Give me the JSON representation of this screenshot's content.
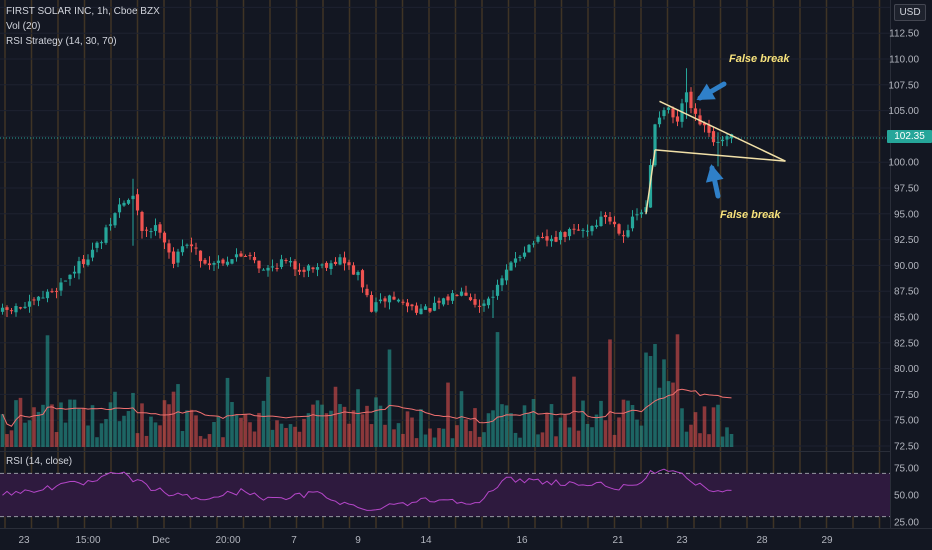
{
  "legend": {
    "symbol_line": "FIRST SOLAR INC, 1h, Cboe BZX",
    "volume_line": "Vol (20)",
    "strategy_line": "RSI Strategy (14, 30, 70)",
    "rsi_line": "RSI (14, close)"
  },
  "currency_badge": "USD",
  "last_price_label": "102.35",
  "annotations": [
    {
      "text": "False break"
    },
    {
      "text": "False break"
    }
  ],
  "colors": {
    "background": "#131722",
    "up": "#26a69a",
    "down": "#ef5350",
    "rsi_line": "#b446c8",
    "rsi_band": "#2e1a3e",
    "annotation_text": "#f7e27c",
    "arrow": "#2f80c9",
    "pattern_lines": "#f1e0a8",
    "volume_ma": "#f07070",
    "strategy_marker": "#e0a030"
  },
  "chart_data": {
    "type": "candlestick",
    "price_axis": {
      "ticks": [
        "112.50",
        "110.00",
        "107.50",
        "105.00",
        "102.50",
        "100.00",
        "97.50",
        "95.00",
        "92.50",
        "90.00",
        "87.50",
        "85.00",
        "82.50",
        "80.00",
        "77.50",
        "75.00",
        "72.50"
      ],
      "range": [
        72.5,
        115
      ]
    },
    "time_axis": {
      "ticks": [
        "23",
        "15:00",
        "Dec",
        "20:00",
        "7",
        "9",
        "14",
        "16",
        "21",
        "23",
        "28",
        "29"
      ]
    },
    "price_path": [
      {
        "bar": 0,
        "value": 85.5
      },
      {
        "bar": 6,
        "value": 86.1
      },
      {
        "bar": 12,
        "value": 87.8
      },
      {
        "bar": 18,
        "value": 90.5
      },
      {
        "bar": 22,
        "value": 92.4
      },
      {
        "bar": 26,
        "value": 95.8
      },
      {
        "bar": 29,
        "value": 96.6
      },
      {
        "bar": 31,
        "value": 93.5
      },
      {
        "bar": 35,
        "value": 93.6
      },
      {
        "bar": 38,
        "value": 90.3
      },
      {
        "bar": 41,
        "value": 92.4
      },
      {
        "bar": 45,
        "value": 90.2
      },
      {
        "bar": 50,
        "value": 90.6
      },
      {
        "bar": 55,
        "value": 91.2
      },
      {
        "bar": 58,
        "value": 89.4
      },
      {
        "bar": 62,
        "value": 90.4
      },
      {
        "bar": 66,
        "value": 89.7
      },
      {
        "bar": 70,
        "value": 89.9
      },
      {
        "bar": 75,
        "value": 90.6
      },
      {
        "bar": 79,
        "value": 89.0
      },
      {
        "bar": 82,
        "value": 85.8
      },
      {
        "bar": 86,
        "value": 87.0
      },
      {
        "bar": 90,
        "value": 86.1
      },
      {
        "bar": 94,
        "value": 85.6
      },
      {
        "bar": 98,
        "value": 86.4
      },
      {
        "bar": 102,
        "value": 87.9
      },
      {
        "bar": 106,
        "value": 86.0
      },
      {
        "bar": 110,
        "value": 87.8
      },
      {
        "bar": 114,
        "value": 90.8
      },
      {
        "bar": 118,
        "value": 92.3
      },
      {
        "bar": 122,
        "value": 92.4
      },
      {
        "bar": 126,
        "value": 93.2
      },
      {
        "bar": 130,
        "value": 93.5
      },
      {
        "bar": 134,
        "value": 94.8
      },
      {
        "bar": 138,
        "value": 93.1
      },
      {
        "bar": 141,
        "value": 94.9
      },
      {
        "bar": 143,
        "value": 95.4
      },
      {
        "bar": 145,
        "value": 103.8
      },
      {
        "bar": 147,
        "value": 105.4
      },
      {
        "bar": 150,
        "value": 103.8
      },
      {
        "bar": 152,
        "value": 106.8
      },
      {
        "bar": 153,
        "value": 104.8
      },
      {
        "bar": 156,
        "value": 103.2
      },
      {
        "bar": 159,
        "value": 101.7
      },
      {
        "bar": 162,
        "value": 102.35
      }
    ],
    "special_bars": [
      {
        "bar": 29,
        "high": 98.4,
        "low": 91.9
      },
      {
        "bar": 31,
        "high": 95.3,
        "low": 92.6
      },
      {
        "bar": 109,
        "high": 87.6,
        "low": 84.9
      },
      {
        "bar": 152,
        "high": 109.1,
        "low": 104.2
      },
      {
        "bar": 159,
        "high": 102.9,
        "low": 99.6
      }
    ],
    "pattern": {
      "type": "falling wedge",
      "upper_line": [
        {
          "bar": 146,
          "value": 105.9
        },
        {
          "bar": 174,
          "value": 100.1
        }
      ],
      "lower_line": [
        {
          "bar": 145,
          "value": 101.2
        },
        {
          "bar": 174,
          "value": 100.1
        }
      ],
      "breakout_impulse": [
        {
          "bar": 143,
          "value": 95.0
        },
        {
          "bar": 145,
          "value": 101.2
        }
      ]
    },
    "volume": {
      "panel": "overlay-bottom",
      "ma_period": 20,
      "peak_bars": [
        110,
        145,
        150,
        135,
        86,
        10
      ]
    },
    "rsi": {
      "period": 14,
      "axis_ticks": [
        "75.00",
        "50.00",
        "25.00"
      ],
      "range": [
        25,
        75
      ],
      "overbought": 70,
      "oversold": 30,
      "path": [
        {
          "bar": 0,
          "value": 50
        },
        {
          "bar": 10,
          "value": 57
        },
        {
          "bar": 20,
          "value": 62
        },
        {
          "bar": 26,
          "value": 71
        },
        {
          "bar": 30,
          "value": 62
        },
        {
          "bar": 36,
          "value": 52
        },
        {
          "bar": 44,
          "value": 46
        },
        {
          "bar": 54,
          "value": 54
        },
        {
          "bar": 60,
          "value": 45
        },
        {
          "bar": 70,
          "value": 52
        },
        {
          "bar": 80,
          "value": 36
        },
        {
          "bar": 86,
          "value": 41
        },
        {
          "bar": 96,
          "value": 46
        },
        {
          "bar": 106,
          "value": 44
        },
        {
          "bar": 112,
          "value": 64
        },
        {
          "bar": 120,
          "value": 63
        },
        {
          "bar": 128,
          "value": 60
        },
        {
          "bar": 134,
          "value": 59
        },
        {
          "bar": 140,
          "value": 56
        },
        {
          "bar": 145,
          "value": 73
        },
        {
          "bar": 152,
          "value": 67
        },
        {
          "bar": 156,
          "value": 55
        },
        {
          "bar": 162,
          "value": 53
        }
      ]
    },
    "last_price": 102.35
  }
}
